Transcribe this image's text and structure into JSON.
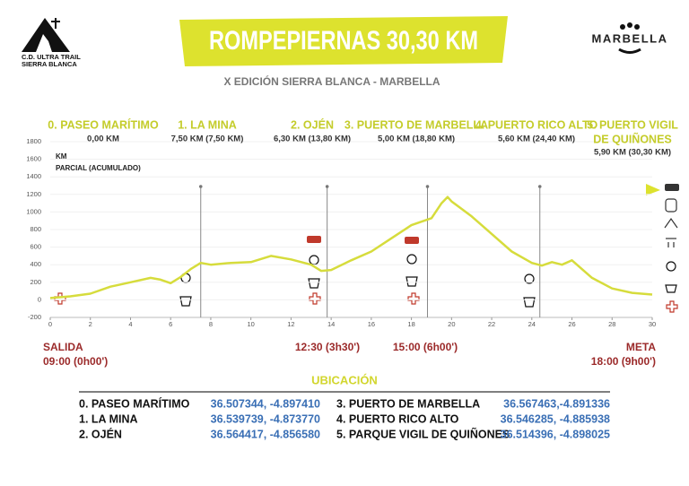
{
  "header": {
    "title": "ROMPEPIERNAS 30,30 KM",
    "subtitle": "X EDICIÓN SIERRA BLANCA - MARBELLA",
    "club": [
      "C.D. ULTRA TRAIL",
      "SIERRA BLANCA"
    ],
    "sponsor": "MARBELLA"
  },
  "stations": [
    {
      "name": [
        "0. PASEO MARÍTIMO"
      ],
      "distance": "0,00 KM"
    },
    {
      "name": [
        "1. LA MINA"
      ],
      "distance": "7,50 KM (7,50 KM)"
    },
    {
      "name": [
        "2. OJÉN"
      ],
      "distance": "6,30 KM (13,80 KM)"
    },
    {
      "name": [
        "3. PUERTO DE MARBELLA"
      ],
      "distance": "5,00 KM (18,80 KM)"
    },
    {
      "name": [
        "4. PUERTO RICO ALTO"
      ],
      "distance": "5,60 KM (24,40 KM)"
    },
    {
      "name": [
        "5. PUERTO VIGIL",
        "DE QUIÑONES"
      ],
      "distance": "5,90 KM (30,30 KM)"
    }
  ],
  "times": {
    "start": {
      "label": "SALIDA",
      "time": "09:00 (0h00')"
    },
    "cutoffs": [
      "12:30 (3h30')",
      "15:00 (6h00')"
    ],
    "finish": {
      "label": "META",
      "time": "18:00 (9h00')"
    }
  },
  "chart_data": {
    "type": "line",
    "y_label": "KM",
    "y_sublabel": "PARCIAL (ACUMULADO)",
    "x": [
      0,
      1,
      2,
      3,
      4,
      5,
      5.5,
      6,
      6.5,
      7,
      7.5,
      8,
      9,
      10,
      11,
      12,
      13,
      13.5,
      14,
      15,
      16,
      17,
      18,
      19,
      19.5,
      19.8,
      20,
      21,
      22,
      23,
      24,
      24.5,
      25,
      25.5,
      26,
      27,
      28,
      29,
      30
    ],
    "values": [
      20,
      40,
      70,
      150,
      200,
      250,
      230,
      190,
      260,
      350,
      420,
      400,
      420,
      430,
      500,
      460,
      400,
      330,
      340,
      450,
      550,
      700,
      850,
      930,
      1100,
      1170,
      1120,
      950,
      750,
      550,
      420,
      390,
      430,
      400,
      450,
      250,
      130,
      80,
      60
    ],
    "color": "#d6dc3c",
    "xlim": [
      0,
      30
    ],
    "ylim": [
      -200,
      1800
    ],
    "xticks": [
      0,
      2,
      4,
      6,
      8,
      10,
      12,
      14,
      16,
      18,
      20,
      22,
      24,
      26,
      28,
      30
    ],
    "yticks": [
      -200,
      0,
      200,
      400,
      600,
      800,
      1000,
      1200,
      1400,
      1600,
      1800
    ],
    "station_x": [
      7.5,
      13.8,
      18.8,
      24.4
    ],
    "grid": true
  },
  "location": {
    "title": "UBICACIÓN",
    "rows": [
      [
        "0. PASEO MARÍTIMO",
        "36.507344, -4.897410"
      ],
      [
        "1. LA MINA",
        "36.539739, -4.873770"
      ],
      [
        "2. OJÉN",
        "36.564417, -4.856580"
      ],
      [
        "3. PUERTO DE MARBELLA",
        "36.567463,-4.891336"
      ],
      [
        "4. PUERTO RICO ALTO",
        "36.546285, -4.885938"
      ],
      [
        "5. PARQUE VIGIL DE QUIÑONES",
        "36.514396, -4.898025"
      ]
    ]
  }
}
